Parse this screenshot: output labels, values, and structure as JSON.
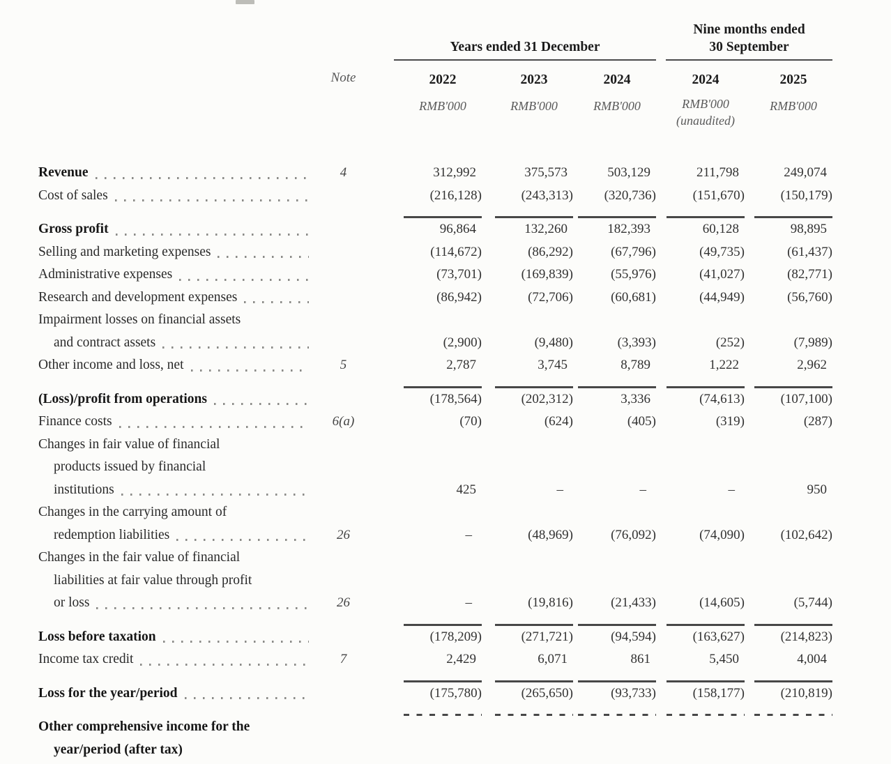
{
  "table": {
    "header": {
      "note_label": "Note",
      "group_year": {
        "title": "Years ended 31 December"
      },
      "group_nine_month": {
        "title_line1": "Nine months ended",
        "title_line2": "30 September"
      },
      "columns": [
        {
          "year": "2022",
          "unit": "RMB'000"
        },
        {
          "year": "2023",
          "unit": "RMB'000"
        },
        {
          "year": "2024",
          "unit": "RMB'000"
        },
        {
          "year": "2024",
          "unit": "RMB'000",
          "note2": "(unaudited)"
        },
        {
          "year": "2025",
          "unit": "RMB'000"
        }
      ]
    },
    "rows": [
      {
        "lines": [
          "Revenue"
        ],
        "bold": true,
        "leader": true,
        "note": "4",
        "values": [
          "312,992",
          "375,573",
          "503,129",
          "211,798",
          "249,074"
        ],
        "rule_below": null
      },
      {
        "lines": [
          "Cost of sales"
        ],
        "bold": false,
        "leader": true,
        "note": null,
        "values": [
          "(216,128)",
          "(243,313)",
          "(320,736)",
          "(151,670)",
          "(150,179)"
        ],
        "rule_below": "solid"
      },
      {
        "lines": [
          "Gross profit"
        ],
        "bold": true,
        "leader": true,
        "note": null,
        "values": [
          "96,864",
          "132,260",
          "182,393",
          "60,128",
          "98,895"
        ],
        "rule_below": null
      },
      {
        "lines": [
          "Selling and marketing expenses"
        ],
        "bold": false,
        "leader": true,
        "note": null,
        "values": [
          "(114,672)",
          "(86,292)",
          "(67,796)",
          "(49,735)",
          "(61,437)"
        ],
        "rule_below": null
      },
      {
        "lines": [
          "Administrative expenses"
        ],
        "bold": false,
        "leader": true,
        "note": null,
        "values": [
          "(73,701)",
          "(169,839)",
          "(55,976)",
          "(41,027)",
          "(82,771)"
        ],
        "rule_below": null
      },
      {
        "lines": [
          "Research and development expenses"
        ],
        "bold": false,
        "leader": true,
        "note": null,
        "values": [
          "(86,942)",
          "(72,706)",
          "(60,681)",
          "(44,949)",
          "(56,760)"
        ],
        "rule_below": null
      },
      {
        "lines": [
          "Impairment losses on financial assets",
          "and contract assets"
        ],
        "bold": false,
        "leader": true,
        "note": null,
        "values": [
          "(2,900)",
          "(9,480)",
          "(3,393)",
          "(252)",
          "(7,989)"
        ],
        "rule_below": null
      },
      {
        "lines": [
          "Other income and loss, net"
        ],
        "bold": false,
        "leader": true,
        "note": "5",
        "values": [
          "2,787",
          "3,745",
          "8,789",
          "1,222",
          "2,962"
        ],
        "rule_below": "solid"
      },
      {
        "lines": [
          "(Loss)/profit from operations"
        ],
        "bold": true,
        "leader": true,
        "note": null,
        "values": [
          "(178,564)",
          "(202,312)",
          "3,336",
          "(74,613)",
          "(107,100)"
        ],
        "rule_below": null
      },
      {
        "lines": [
          "Finance costs"
        ],
        "bold": false,
        "leader": true,
        "note": "6(a)",
        "values": [
          "(70)",
          "(624)",
          "(405)",
          "(319)",
          "(287)"
        ],
        "rule_below": null
      },
      {
        "lines": [
          "Changes in fair value of financial",
          "products issued by financial",
          "institutions"
        ],
        "bold": false,
        "leader": true,
        "note": null,
        "values": [
          "425",
          "–",
          "–",
          "–",
          "950"
        ],
        "rule_below": null
      },
      {
        "lines": [
          "Changes in the carrying amount of",
          "redemption liabilities"
        ],
        "bold": false,
        "leader": true,
        "note": "26",
        "values": [
          "–",
          "(48,969)",
          "(76,092)",
          "(74,090)",
          "(102,642)"
        ],
        "rule_below": null
      },
      {
        "lines": [
          "Changes in the fair value of financial",
          "liabilities at fair value through profit",
          "or loss"
        ],
        "bold": false,
        "leader": true,
        "note": "26",
        "values": [
          "–",
          "(19,816)",
          "(21,433)",
          "(14,605)",
          "(5,744)"
        ],
        "rule_below": "solid"
      },
      {
        "lines": [
          "Loss before taxation"
        ],
        "bold": true,
        "leader": true,
        "note": null,
        "values": [
          "(178,209)",
          "(271,721)",
          "(94,594)",
          "(163,627)",
          "(214,823)"
        ],
        "rule_below": null
      },
      {
        "lines": [
          "Income tax credit"
        ],
        "bold": false,
        "leader": true,
        "note": "7",
        "values": [
          "2,429",
          "6,071",
          "861",
          "5,450",
          "4,004"
        ],
        "rule_below": "solid"
      },
      {
        "lines": [
          "Loss for the year/period"
        ],
        "bold": true,
        "leader": true,
        "note": null,
        "values": [
          "(175,780)",
          "(265,650)",
          "(93,733)",
          "(158,177)",
          "(210,819)"
        ],
        "rule_below": "dashed"
      },
      {
        "lines": [
          "Other comprehensive income for the",
          "year/period (after tax)"
        ],
        "bold": true,
        "leader": false,
        "note": null,
        "values": null,
        "rule_below": null
      }
    ]
  }
}
